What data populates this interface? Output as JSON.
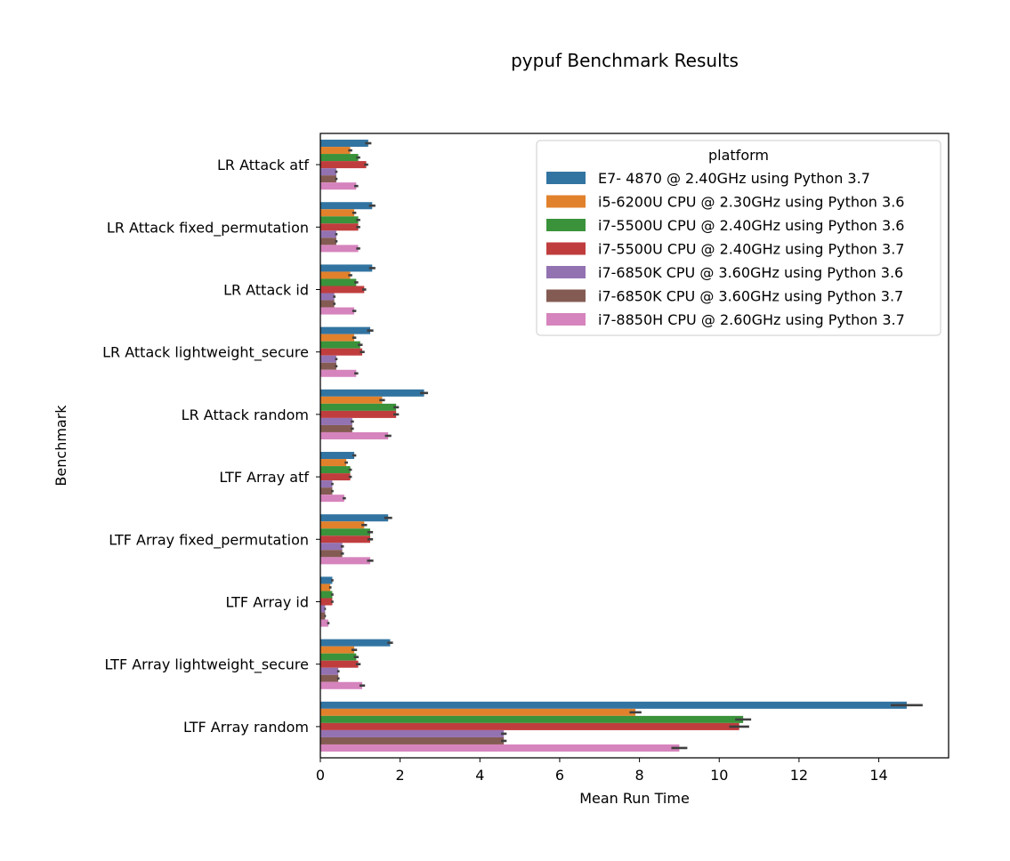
{
  "chart_data": {
    "type": "bar",
    "orientation": "horizontal",
    "title": "pypuf Benchmark Results",
    "xlabel": "Mean Run Time",
    "ylabel": "Benchmark",
    "xlim": [
      0,
      15.75
    ],
    "xticks": [
      0,
      2,
      4,
      6,
      8,
      10,
      12,
      14
    ],
    "grid": false,
    "legend": {
      "title": "platform",
      "position": "top-right"
    },
    "categories": [
      "LR Attack atf",
      "LR Attack fixed_permutation",
      "LR Attack id",
      "LR Attack lightweight_secure",
      "LR Attack random",
      "LTF Array atf",
      "LTF Array fixed_permutation",
      "LTF Array id",
      "LTF Array lightweight_secure",
      "LTF Array random"
    ],
    "series": [
      {
        "name": "E7- 4870  @ 2.40GHz using Python 3.7",
        "color": "#3274a1",
        "values": [
          1.2,
          1.3,
          1.3,
          1.25,
          2.6,
          0.85,
          1.7,
          0.3,
          1.75,
          14.7
        ],
        "ci": [
          [
            1.12,
            1.28
          ],
          [
            1.22,
            1.38
          ],
          [
            1.22,
            1.38
          ],
          [
            1.17,
            1.33
          ],
          [
            2.5,
            2.7
          ],
          [
            0.8,
            0.9
          ],
          [
            1.6,
            1.8
          ],
          [
            0.27,
            0.33
          ],
          [
            1.68,
            1.82
          ],
          [
            14.3,
            15.1
          ]
        ]
      },
      {
        "name": "i5-6200U CPU @ 2.30GHz using Python 3.6",
        "color": "#e1812c",
        "values": [
          0.75,
          0.85,
          0.75,
          0.85,
          1.55,
          0.65,
          1.1,
          0.25,
          0.85,
          7.9
        ],
        "ci": [
          [
            0.7,
            0.8
          ],
          [
            0.8,
            0.9
          ],
          [
            0.7,
            0.8
          ],
          [
            0.8,
            0.9
          ],
          [
            1.48,
            1.62
          ],
          [
            0.61,
            0.69
          ],
          [
            1.03,
            1.17
          ],
          [
            0.22,
            0.28
          ],
          [
            0.78,
            0.92
          ],
          [
            7.75,
            8.05
          ]
        ]
      },
      {
        "name": "i7-5500U CPU @ 2.40GHz using Python 3.6",
        "color": "#3a923a",
        "values": [
          0.95,
          0.95,
          0.9,
          1.0,
          1.9,
          0.75,
          1.25,
          0.3,
          0.9,
          10.6
        ],
        "ci": [
          [
            0.9,
            1.0
          ],
          [
            0.9,
            1.0
          ],
          [
            0.85,
            0.95
          ],
          [
            0.94,
            1.06
          ],
          [
            1.83,
            1.97
          ],
          [
            0.71,
            0.79
          ],
          [
            1.18,
            1.32
          ],
          [
            0.27,
            0.33
          ],
          [
            0.84,
            0.96
          ],
          [
            10.4,
            10.8
          ]
        ]
      },
      {
        "name": "i7-5500U CPU @ 2.40GHz using Python 3.7",
        "color": "#c03d3e",
        "values": [
          1.15,
          0.95,
          1.1,
          1.05,
          1.9,
          0.75,
          1.25,
          0.3,
          0.95,
          10.5
        ],
        "ci": [
          [
            1.1,
            1.2
          ],
          [
            0.9,
            1.0
          ],
          [
            1.05,
            1.15
          ],
          [
            0.99,
            1.11
          ],
          [
            1.83,
            1.97
          ],
          [
            0.71,
            0.79
          ],
          [
            1.18,
            1.32
          ],
          [
            0.27,
            0.33
          ],
          [
            0.89,
            1.01
          ],
          [
            10.25,
            10.75
          ]
        ]
      },
      {
        "name": "i7-6850K CPU @ 3.60GHz using Python 3.6",
        "color": "#9372b2",
        "values": [
          0.4,
          0.4,
          0.35,
          0.4,
          0.8,
          0.3,
          0.55,
          0.12,
          0.45,
          4.6
        ],
        "ci": [
          [
            0.37,
            0.43
          ],
          [
            0.37,
            0.43
          ],
          [
            0.32,
            0.38
          ],
          [
            0.37,
            0.43
          ],
          [
            0.76,
            0.84
          ],
          [
            0.27,
            0.33
          ],
          [
            0.51,
            0.59
          ],
          [
            0.1,
            0.14
          ],
          [
            0.42,
            0.48
          ],
          [
            4.53,
            4.67
          ]
        ]
      },
      {
        "name": "i7-6850K CPU @ 3.60GHz using Python 3.7",
        "color": "#845b53",
        "values": [
          0.4,
          0.4,
          0.35,
          0.4,
          0.8,
          0.3,
          0.55,
          0.12,
          0.45,
          4.6
        ],
        "ci": [
          [
            0.37,
            0.43
          ],
          [
            0.37,
            0.43
          ],
          [
            0.32,
            0.38
          ],
          [
            0.37,
            0.43
          ],
          [
            0.76,
            0.84
          ],
          [
            0.27,
            0.33
          ],
          [
            0.51,
            0.59
          ],
          [
            0.1,
            0.14
          ],
          [
            0.42,
            0.48
          ],
          [
            4.53,
            4.67
          ]
        ]
      },
      {
        "name": "i7-8850H CPU @ 2.60GHz using Python 3.7",
        "color": "#d684bd",
        "values": [
          0.9,
          0.95,
          0.85,
          0.9,
          1.7,
          0.6,
          1.25,
          0.2,
          1.05,
          9.0
        ],
        "ci": [
          [
            0.85,
            0.95
          ],
          [
            0.9,
            1.0
          ],
          [
            0.8,
            0.9
          ],
          [
            0.85,
            0.95
          ],
          [
            1.62,
            1.78
          ],
          [
            0.56,
            0.64
          ],
          [
            1.17,
            1.33
          ],
          [
            0.17,
            0.23
          ],
          [
            0.98,
            1.12
          ],
          [
            8.8,
            9.2
          ]
        ]
      }
    ]
  }
}
